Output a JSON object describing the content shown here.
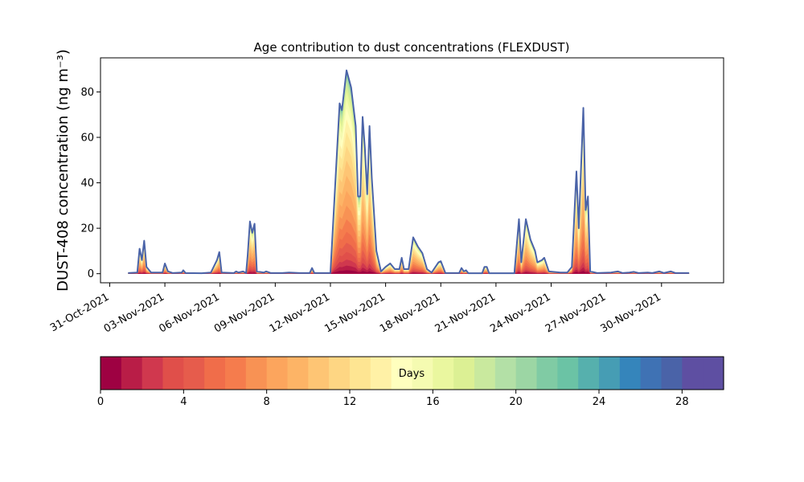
{
  "chart_data": {
    "type": "area",
    "title": "Age contribution to dust concentrations (FLEXDUST)",
    "ylabel": "DUST-408 concentration (ng m⁻³)",
    "xlabel": "",
    "ylim": [
      -4,
      95
    ],
    "xlim": [
      "2021-10-30T12:00",
      "2021-12-03T09:00"
    ],
    "yticks": [
      0,
      20,
      40,
      60,
      80
    ],
    "xticks": [
      "31-Oct-2021",
      "03-Nov-2021",
      "06-Nov-2021",
      "09-Nov-2021",
      "12-Nov-2021",
      "15-Nov-2021",
      "18-Nov-2021",
      "21-Nov-2021",
      "24-Nov-2021",
      "27-Nov-2021",
      "30-Nov-2021"
    ],
    "grid": false,
    "total_series": {
      "color": "#4a63a8",
      "points": [
        [
          "2021-11-01T00:00",
          0.3
        ],
        [
          "2021-11-01T12:00",
          0.5
        ],
        [
          "2021-11-01T15:00",
          11
        ],
        [
          "2021-11-01T18:00",
          6
        ],
        [
          "2021-11-01T21:00",
          14.5
        ],
        [
          "2021-11-02T00:00",
          3
        ],
        [
          "2021-11-02T06:00",
          0.5
        ],
        [
          "2021-11-02T21:00",
          0.5
        ],
        [
          "2021-11-03T00:00",
          4.5
        ],
        [
          "2021-11-03T04:00",
          1
        ],
        [
          "2021-11-03T10:00",
          0.3
        ],
        [
          "2021-11-03T22:00",
          0.5
        ],
        [
          "2021-11-04T00:00",
          1.5
        ],
        [
          "2021-11-04T03:00",
          0.3
        ],
        [
          "2021-11-05T00:00",
          0.2
        ],
        [
          "2021-11-05T12:00",
          0.5
        ],
        [
          "2021-11-05T20:00",
          6
        ],
        [
          "2021-11-05T23:00",
          9.5
        ],
        [
          "2021-11-06T02:00",
          0.5
        ],
        [
          "2021-11-06T18:00",
          0.3
        ],
        [
          "2021-11-06T21:00",
          1
        ],
        [
          "2021-11-07T00:00",
          0.5
        ],
        [
          "2021-11-07T06:00",
          1
        ],
        [
          "2021-11-07T10:00",
          0.3
        ],
        [
          "2021-11-07T12:00",
          8
        ],
        [
          "2021-11-07T15:00",
          23
        ],
        [
          "2021-11-07T18:00",
          18
        ],
        [
          "2021-11-07T21:00",
          22
        ],
        [
          "2021-11-08T00:00",
          1
        ],
        [
          "2021-11-08T09:00",
          0.5
        ],
        [
          "2021-11-08T12:00",
          1
        ],
        [
          "2021-11-08T18:00",
          0.3
        ],
        [
          "2021-11-09T09:00",
          0.3
        ],
        [
          "2021-11-09T18:00",
          0.5
        ],
        [
          "2021-11-10T08:00",
          0.3
        ],
        [
          "2021-11-10T21:00",
          0.3
        ],
        [
          "2021-11-11T00:00",
          2.5
        ],
        [
          "2021-11-11T03:00",
          0.3
        ],
        [
          "2021-11-12T00:00",
          0.3
        ],
        [
          "2021-11-12T12:00",
          75
        ],
        [
          "2021-11-12T15:00",
          72
        ],
        [
          "2021-11-12T21:00",
          89.5
        ],
        [
          "2021-11-13T03:00",
          82
        ],
        [
          "2021-11-13T09:00",
          65
        ],
        [
          "2021-11-13T12:00",
          34
        ],
        [
          "2021-11-13T15:00",
          34
        ],
        [
          "2021-11-13T18:00",
          69
        ],
        [
          "2021-11-13T21:00",
          55
        ],
        [
          "2021-11-14T00:00",
          35
        ],
        [
          "2021-11-14T03:00",
          65
        ],
        [
          "2021-11-14T06:00",
          42
        ],
        [
          "2021-11-14T12:00",
          10
        ],
        [
          "2021-11-14T18:00",
          1
        ],
        [
          "2021-11-15T00:00",
          3
        ],
        [
          "2021-11-15T06:00",
          4.5
        ],
        [
          "2021-11-15T12:00",
          2
        ],
        [
          "2021-11-15T18:00",
          2
        ],
        [
          "2021-11-15T21:00",
          7
        ],
        [
          "2021-11-16T00:00",
          2
        ],
        [
          "2021-11-16T06:00",
          2
        ],
        [
          "2021-11-16T12:00",
          16
        ],
        [
          "2021-11-16T18:00",
          12
        ],
        [
          "2021-11-17T00:00",
          9
        ],
        [
          "2021-11-17T06:00",
          2
        ],
        [
          "2021-11-17T12:00",
          0.5
        ],
        [
          "2021-11-17T21:00",
          5
        ],
        [
          "2021-11-18T00:00",
          5.5
        ],
        [
          "2021-11-18T06:00",
          0.3
        ],
        [
          "2021-11-18T18:00",
          0.3
        ],
        [
          "2021-11-19T00:00",
          0.3
        ],
        [
          "2021-11-19T03:00",
          2.5
        ],
        [
          "2021-11-19T06:00",
          1
        ],
        [
          "2021-11-19T09:00",
          1.5
        ],
        [
          "2021-11-19T12:00",
          0.2
        ],
        [
          "2021-11-20T06:00",
          0.2
        ],
        [
          "2021-11-20T09:00",
          3
        ],
        [
          "2021-11-20T12:00",
          3
        ],
        [
          "2021-11-20T15:00",
          0.2
        ],
        [
          "2021-11-22T00:00",
          0.2
        ],
        [
          "2021-11-22T06:00",
          24
        ],
        [
          "2021-11-22T09:00",
          5
        ],
        [
          "2021-11-22T15:00",
          24
        ],
        [
          "2021-11-22T21:00",
          15
        ],
        [
          "2021-11-23T03:00",
          10
        ],
        [
          "2021-11-23T06:00",
          5
        ],
        [
          "2021-11-23T12:00",
          6
        ],
        [
          "2021-11-23T15:00",
          7
        ],
        [
          "2021-11-23T21:00",
          1
        ],
        [
          "2021-11-24T12:00",
          0.5
        ],
        [
          "2021-11-24T21:00",
          0.5
        ],
        [
          "2021-11-25T03:00",
          3
        ],
        [
          "2021-11-25T09:00",
          45
        ],
        [
          "2021-11-25T12:00",
          20
        ],
        [
          "2021-11-25T18:00",
          73
        ],
        [
          "2021-11-25T21:00",
          28
        ],
        [
          "2021-11-26T00:00",
          34
        ],
        [
          "2021-11-26T03:00",
          1
        ],
        [
          "2021-11-26T12:00",
          0.3
        ],
        [
          "2021-11-27T06:00",
          0.5
        ],
        [
          "2021-11-27T15:00",
          1
        ],
        [
          "2021-11-27T21:00",
          0.3
        ],
        [
          "2021-11-28T06:00",
          0.5
        ],
        [
          "2021-11-28T12:00",
          0.8
        ],
        [
          "2021-11-28T18:00",
          0.3
        ],
        [
          "2021-11-29T06:00",
          0.5
        ],
        [
          "2021-11-29T12:00",
          0.3
        ],
        [
          "2021-11-29T21:00",
          1
        ],
        [
          "2021-11-30T03:00",
          0.3
        ],
        [
          "2021-11-30T12:00",
          1
        ],
        [
          "2021-11-30T18:00",
          0.3
        ],
        [
          "2021-12-01T12:00",
          0.3
        ]
      ]
    },
    "age_bands": {
      "min_days": 0,
      "max_days": 30,
      "step_days": 1,
      "colors": [
        "#9e0142",
        "#b91d47",
        "#d0384e",
        "#e04f4a",
        "#e65c4c",
        "#f06d4a",
        "#f57c4d",
        "#f89254",
        "#fca55d",
        "#fdb466",
        "#fec574",
        "#fed683",
        "#fee592",
        "#fff1a6",
        "#ffffbe",
        "#f5fbb1",
        "#eaf79f",
        "#dcf094",
        "#c9e99e",
        "#b3e0a6",
        "#9cd6a4",
        "#80cba4",
        "#6bc3a5",
        "#56b0ad",
        "#469db4",
        "#3585bb",
        "#3f72b4",
        "#4a63a8",
        "#5e4fa2",
        "#5e4fa2"
      ]
    },
    "colorbar": {
      "label": "Days",
      "ticks": [
        0,
        4,
        8,
        12,
        16,
        20,
        24,
        28
      ]
    }
  }
}
